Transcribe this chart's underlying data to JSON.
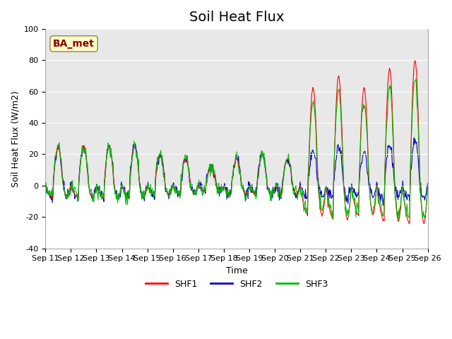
{
  "title": "Soil Heat Flux",
  "xlabel": "Time",
  "ylabel": "Soil Heat Flux (W/m2)",
  "ylim": [
    -40,
    100
  ],
  "xlim_days": [
    0,
    15
  ],
  "legend_labels": [
    "SHF1",
    "SHF2",
    "SHF3"
  ],
  "legend_colors": [
    "#ff0000",
    "#0000cc",
    "#00cc00"
  ],
  "annotation_text": "BA_met",
  "annotation_color": "#8b0000",
  "annotation_bg": "#ffffcc",
  "background_gray": "#e8e8e8",
  "title_fontsize": 14,
  "tick_labels": [
    "Sep 11",
    "Sep 12",
    "Sep 13",
    "Sep 14",
    "Sep 15",
    "Sep 16",
    "Sep 17",
    "Sep 18",
    "Sep 19",
    "Sep 20",
    "Sep 21",
    "Sep 22",
    "Sep 23",
    "Sep 24",
    "Sep 25",
    "Sep 26"
  ],
  "yticks": [
    -40,
    -20,
    0,
    20,
    40,
    60,
    80,
    100
  ]
}
